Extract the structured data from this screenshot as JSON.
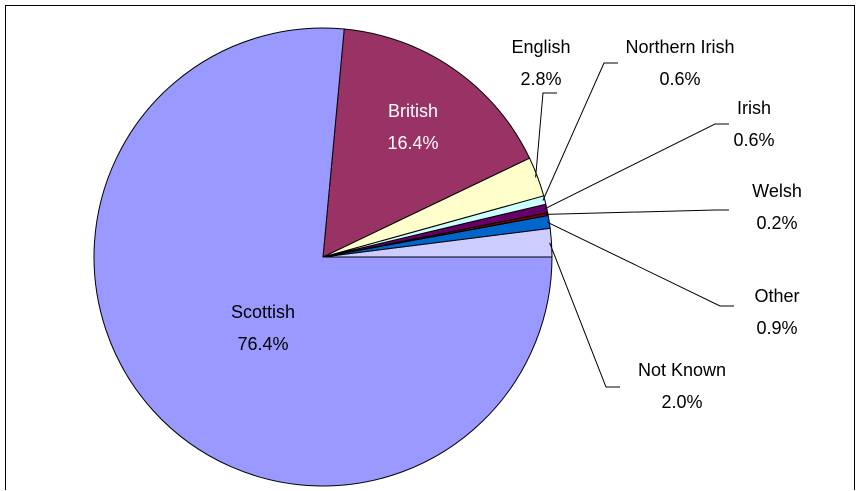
{
  "chart_data": {
    "type": "pie",
    "title": "",
    "start": "east",
    "direction": "counterclockwise",
    "slices": [
      {
        "name": "Not Known",
        "value": 2.0,
        "label": "2.0%",
        "color": "#ccccff"
      },
      {
        "name": "Other",
        "value": 0.9,
        "label": "0.9%",
        "color": "#0066cc"
      },
      {
        "name": "Welsh",
        "value": 0.2,
        "label": "0.2%",
        "color": "#800000"
      },
      {
        "name": "Irish",
        "value": 0.6,
        "label": "0.6%",
        "color": "#660066"
      },
      {
        "name": "Northern Irish",
        "value": 0.6,
        "label": "0.6%",
        "color": "#ccffff"
      },
      {
        "name": "English",
        "value": 2.8,
        "label": "2.8%",
        "color": "#ffffcc"
      },
      {
        "name": "British",
        "value": 16.4,
        "label": "16.4%",
        "color": "#993366"
      },
      {
        "name": "Scottish",
        "value": 76.4,
        "label": "76.4%",
        "color": "#9999ff"
      }
    ]
  }
}
